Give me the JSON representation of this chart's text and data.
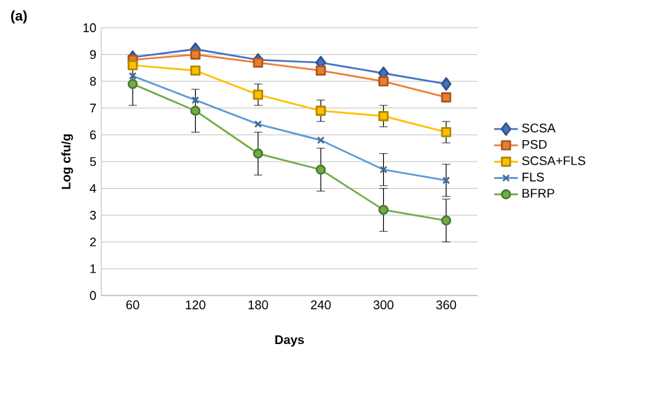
{
  "chart_data": {
    "type": "line",
    "title": "(a)",
    "xlabel": "Days",
    "ylabel": "Log cfu/g",
    "categories": [
      "60",
      "120",
      "180",
      "240",
      "300",
      "360"
    ],
    "series": [
      {
        "name": "SCSA",
        "color": "#4472c4",
        "marker": "diamond",
        "values": [
          8.9,
          9.2,
          8.8,
          8.7,
          8.3,
          7.9
        ]
      },
      {
        "name": "PSD",
        "color": "#ed7d31",
        "marker": "square",
        "values": [
          8.8,
          9.0,
          8.7,
          8.4,
          8.0,
          7.4
        ]
      },
      {
        "name": "SCSA+FLS",
        "color": "#ffc000",
        "marker": "square",
        "values": [
          8.6,
          8.4,
          7.5,
          6.9,
          6.7,
          6.1
        ],
        "errors": [
          null,
          null,
          0.4,
          0.4,
          0.4,
          0.4
        ]
      },
      {
        "name": "FLS",
        "color": "#5b9bd5",
        "marker": "cross",
        "values": [
          8.2,
          7.3,
          6.4,
          5.8,
          4.7,
          4.3
        ],
        "errors": [
          null,
          null,
          null,
          null,
          0.6,
          0.6
        ]
      },
      {
        "name": "BFRP",
        "color": "#70ad47",
        "marker": "circle",
        "values": [
          7.9,
          6.9,
          5.3,
          4.7,
          3.2,
          2.8
        ],
        "errors": [
          0.8,
          0.8,
          0.8,
          0.8,
          0.8,
          0.8
        ]
      }
    ],
    "ylim": [
      0,
      10
    ],
    "yticks": [
      0,
      1,
      2,
      3,
      4,
      5,
      6,
      7,
      8,
      9,
      10
    ],
    "grid": "y",
    "legend": "right",
    "line_style": "solid"
  }
}
